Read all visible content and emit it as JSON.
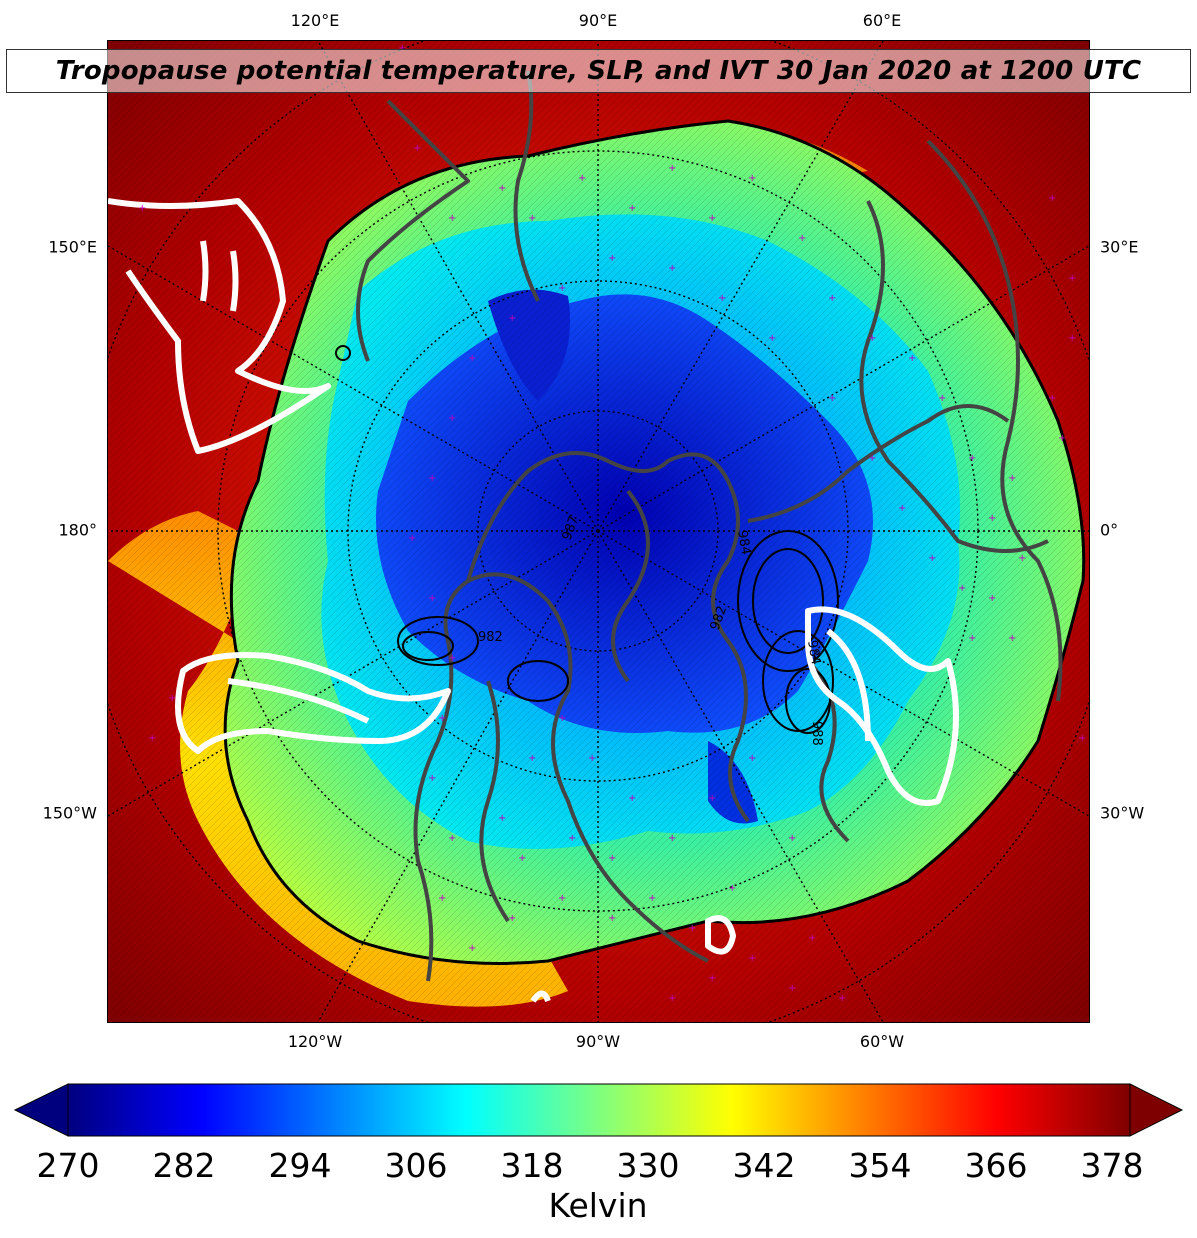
{
  "title": "Tropopause potential temperature, SLP, and IVT 30 Jan 2020 at 1200 UTC",
  "longitude_labels_top": [
    "120°E",
    "90°E",
    "60°E"
  ],
  "longitude_labels_bottom": [
    "120°W",
    "90°W",
    "60°W"
  ],
  "latitude_labels_left": [
    "150°E",
    "180°",
    "150°W"
  ],
  "latitude_labels_right": [
    "30°E",
    "0°",
    "30°W"
  ],
  "colorbar": {
    "label": "Kelvin",
    "min": 270,
    "max": 378,
    "ticks": [
      "270",
      "282",
      "294",
      "306",
      "318",
      "330",
      "342",
      "354",
      "366",
      "378"
    ],
    "colormap": [
      "#00007f",
      "#0000ff",
      "#007fff",
      "#00ffff",
      "#7fff7f",
      "#ffff00",
      "#ff7f00",
      "#ff0000",
      "#7f0000"
    ]
  },
  "slp_contour_labels": [
    "987",
    "984",
    "984",
    "982",
    "982",
    "988"
  ],
  "colors": {
    "outer_background": "#8b0000",
    "ivt_contour": "#ffffff",
    "coastline": "#444444",
    "station_marker": "#c000c0"
  }
}
